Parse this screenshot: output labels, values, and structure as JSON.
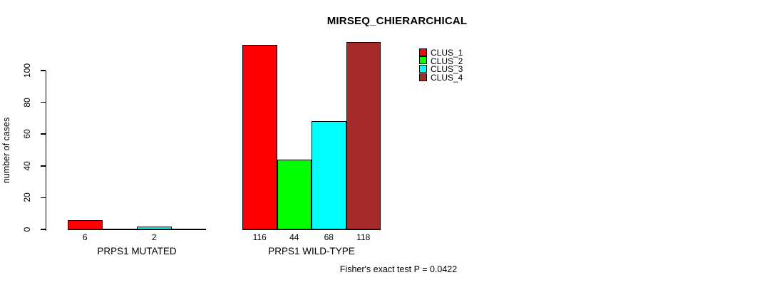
{
  "chart_data": {
    "type": "bar",
    "title": "MIRSEQ_CHIERARCHICAL",
    "ylabel": "number of cases",
    "footnote": "Fisher's exact test P = 0.0422",
    "ylim": [
      0,
      100
    ],
    "yticks": [
      0,
      20,
      40,
      60,
      80,
      100
    ],
    "grid": false,
    "legend_position": "top-right",
    "series": [
      {
        "name": "CLUS_1",
        "color": "#FF0000"
      },
      {
        "name": "CLUS_2",
        "color": "#00FF00"
      },
      {
        "name": "CLUS_3",
        "color": "#00FFFF"
      },
      {
        "name": "CLUS_4",
        "color": "#A52A2A"
      }
    ],
    "categories": [
      "PRPS1 MUTATED",
      "PRPS1 WILD-TYPE"
    ],
    "groups": [
      {
        "label": "PRPS1 MUTATED",
        "values": [
          6,
          0,
          2,
          0
        ],
        "bar_labels": [
          "6",
          "",
          "2",
          ""
        ]
      },
      {
        "label": "PRPS1 WILD-TYPE",
        "values": [
          116,
          44,
          68,
          118
        ],
        "bar_labels": [
          "116",
          "44",
          "68",
          "118"
        ]
      }
    ]
  },
  "axis_color": "#000000",
  "text_color": "#000000"
}
